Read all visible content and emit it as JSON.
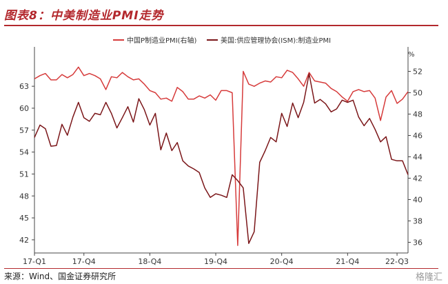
{
  "header": {
    "title": "图表8：中美制造业PMI走势",
    "source": "来源：Wind、国金证券研究所",
    "watermark": "格隆汇"
  },
  "chart_data": {
    "type": "line",
    "x_ticks": [
      "17-Q1",
      "17-Q4",
      "18-Q4",
      "19-Q4",
      "20-Q4",
      "21-Q4",
      "22-Q3"
    ],
    "left_unit": "",
    "right_unit": "%",
    "left_axis": {
      "ticks": [
        42,
        45,
        48,
        51,
        54,
        57,
        60,
        63
      ],
      "ylim": [
        40.2,
        66.5
      ]
    },
    "right_axis": {
      "ticks": [
        36,
        38,
        40,
        42,
        44,
        46,
        48,
        50,
        52
      ],
      "ylim": [
        35,
        53
      ]
    },
    "series": [
      {
        "name": "中国P制造业PMI(右轴)",
        "axis": "right",
        "color": "#d63a3a",
        "x": [
          "2017-01",
          "2017-02",
          "2017-03",
          "2017-04",
          "2017-05",
          "2017-06",
          "2017-07",
          "2017-08",
          "2017-09",
          "2017-10",
          "2017-11",
          "2017-12",
          "2018-01",
          "2018-02",
          "2018-03",
          "2018-04",
          "2018-05",
          "2018-06",
          "2018-07",
          "2018-08",
          "2018-09",
          "2018-10",
          "2018-11",
          "2018-12",
          "2019-01",
          "2019-02",
          "2019-03",
          "2019-04",
          "2019-05",
          "2019-06",
          "2019-07",
          "2019-08",
          "2019-09",
          "2019-10",
          "2019-11",
          "2019-12",
          "2020-01",
          "2020-02",
          "2020-03",
          "2020-04",
          "2020-05",
          "2020-06",
          "2020-07",
          "2020-08",
          "2020-09",
          "2020-10",
          "2020-11",
          "2020-12",
          "2021-01",
          "2021-02",
          "2021-03",
          "2021-04",
          "2021-05",
          "2021-06",
          "2021-07",
          "2021-08",
          "2021-09",
          "2021-10",
          "2021-11",
          "2021-12",
          "2022-01",
          "2022-02",
          "2022-03",
          "2022-04",
          "2022-05",
          "2022-06",
          "2022-07",
          "2022-08",
          "2022-09"
        ],
        "values": [
          51.3,
          51.6,
          51.8,
          51.2,
          51.2,
          51.7,
          51.4,
          51.7,
          52.4,
          51.6,
          51.8,
          51.6,
          51.3,
          50.3,
          51.5,
          51.4,
          51.9,
          51.5,
          51.2,
          51.3,
          50.8,
          50.2,
          50.0,
          49.4,
          49.5,
          49.2,
          50.5,
          50.1,
          49.4,
          49.4,
          49.7,
          49.5,
          49.8,
          49.3,
          50.2,
          50.2,
          50.0,
          35.7,
          52.0,
          50.8,
          50.6,
          50.9,
          51.1,
          51.0,
          51.5,
          51.4,
          52.1,
          51.9,
          51.3,
          50.6,
          51.9,
          51.1,
          51.0,
          50.9,
          50.4,
          50.1,
          49.6,
          49.2,
          50.1,
          50.3,
          50.1,
          50.2,
          49.5,
          47.4,
          49.6,
          50.2,
          49.0,
          49.4,
          50.1
        ]
      },
      {
        "name": "美国:供应管理协会(ISM):制造业PMI",
        "axis": "left",
        "color": "#7a1518",
        "x": [
          "2017-01",
          "2017-02",
          "2017-03",
          "2017-04",
          "2017-05",
          "2017-06",
          "2017-07",
          "2017-08",
          "2017-09",
          "2017-10",
          "2017-11",
          "2017-12",
          "2018-01",
          "2018-02",
          "2018-03",
          "2018-04",
          "2018-05",
          "2018-06",
          "2018-07",
          "2018-08",
          "2018-09",
          "2018-10",
          "2018-11",
          "2018-12",
          "2019-01",
          "2019-02",
          "2019-03",
          "2019-04",
          "2019-05",
          "2019-06",
          "2019-07",
          "2019-08",
          "2019-09",
          "2019-10",
          "2019-11",
          "2019-12",
          "2020-01",
          "2020-02",
          "2020-03",
          "2020-04",
          "2020-05",
          "2020-06",
          "2020-07",
          "2020-08",
          "2020-09",
          "2020-10",
          "2020-11",
          "2020-12",
          "2021-01",
          "2021-02",
          "2021-03",
          "2021-04",
          "2021-05",
          "2021-06",
          "2021-07",
          "2021-08",
          "2021-09",
          "2021-10",
          "2021-11",
          "2021-12",
          "2022-01",
          "2022-02",
          "2022-03",
          "2022-04",
          "2022-05",
          "2022-06",
          "2022-07",
          "2022-08",
          "2022-09"
        ],
        "values": [
          56.0,
          57.7,
          57.2,
          54.8,
          54.9,
          57.8,
          56.3,
          58.8,
          60.8,
          58.7,
          58.2,
          59.3,
          59.1,
          60.8,
          59.3,
          57.3,
          58.7,
          60.2,
          58.1,
          61.3,
          59.8,
          57.7,
          59.3,
          54.3,
          56.6,
          54.2,
          55.3,
          52.8,
          52.1,
          51.7,
          51.2,
          49.1,
          47.8,
          48.3,
          48.1,
          47.8,
          50.9,
          50.1,
          49.1,
          41.5,
          43.1,
          52.6,
          54.2,
          56.0,
          55.4,
          59.3,
          57.5,
          60.7,
          58.7,
          60.8,
          64.7,
          60.7,
          61.2,
          60.6,
          59.5,
          59.9,
          61.1,
          60.8,
          61.1,
          58.8,
          57.6,
          58.6,
          57.1,
          55.4,
          56.1,
          53.0,
          52.8,
          52.8,
          50.9
        ]
      }
    ]
  }
}
